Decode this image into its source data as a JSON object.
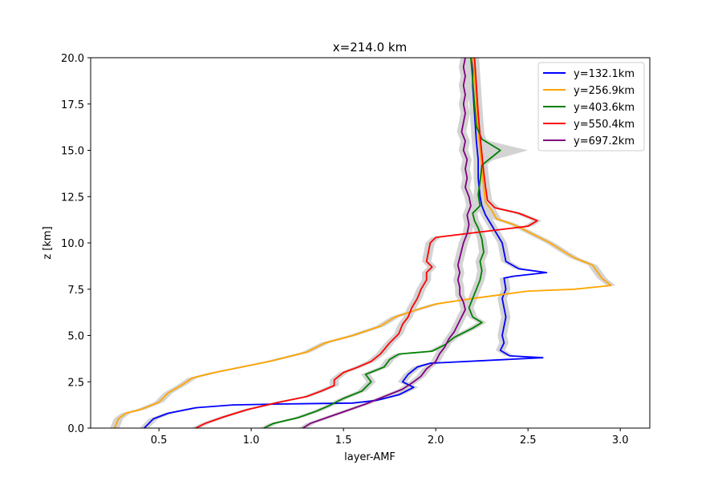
{
  "chart_data": {
    "type": "line",
    "title": "x=214.0 km",
    "xlabel": "layer-AMF",
    "ylabel": "z [km]",
    "xlim": [
      0.13,
      3.16
    ],
    "ylim": [
      0,
      20
    ],
    "x_ticks": [
      0.5,
      1.0,
      1.5,
      2.0,
      2.5,
      3.0
    ],
    "x_tick_labels": [
      "0.5",
      "1.0",
      "1.5",
      "2.0",
      "2.5",
      "3.0"
    ],
    "y_ticks": [
      0,
      2.5,
      5,
      7.5,
      10,
      12.5,
      15,
      17.5,
      20
    ],
    "y_tick_labels": [
      "0.0",
      "2.5",
      "5.0",
      "7.5",
      "10.0",
      "12.5",
      "15.0",
      "17.5",
      "20.0"
    ],
    "grid": false,
    "legend_position": "top-right",
    "uncertainty_band_color": "#d3d3d3",
    "series": [
      {
        "name": "y=132.1km",
        "color": "#0000ff",
        "points": [
          [
            0.42,
            0.0
          ],
          [
            0.47,
            0.5
          ],
          [
            0.55,
            0.8
          ],
          [
            0.7,
            1.1
          ],
          [
            0.9,
            1.25
          ],
          [
            1.15,
            1.3
          ],
          [
            1.55,
            1.35
          ],
          [
            1.68,
            1.5
          ],
          [
            1.8,
            1.8
          ],
          [
            1.88,
            2.2
          ],
          [
            1.82,
            2.5
          ],
          [
            1.85,
            2.9
          ],
          [
            1.9,
            3.3
          ],
          [
            1.97,
            3.5
          ],
          [
            2.58,
            3.8
          ],
          [
            2.4,
            3.9
          ],
          [
            2.35,
            4.2
          ],
          [
            2.37,
            4.6
          ],
          [
            2.36,
            5.0
          ],
          [
            2.37,
            5.5
          ],
          [
            2.38,
            6.0
          ],
          [
            2.37,
            6.5
          ],
          [
            2.36,
            7.0
          ],
          [
            2.38,
            7.5
          ],
          [
            2.37,
            8.1
          ],
          [
            2.42,
            8.2
          ],
          [
            2.6,
            8.4
          ],
          [
            2.45,
            8.6
          ],
          [
            2.38,
            9.0
          ],
          [
            2.37,
            9.5
          ],
          [
            2.36,
            10.0
          ],
          [
            2.33,
            10.5
          ],
          [
            2.3,
            11.0
          ],
          [
            2.27,
            11.5
          ],
          [
            2.25,
            12.0
          ],
          [
            2.24,
            12.5
          ],
          [
            2.23,
            13.5
          ],
          [
            2.23,
            14.5
          ],
          [
            2.22,
            15.5
          ],
          [
            2.21,
            17.0
          ],
          [
            2.2,
            18.5
          ],
          [
            2.2,
            20.0
          ]
        ]
      },
      {
        "name": "y=256.9km",
        "color": "#ffa500",
        "points": [
          [
            0.26,
            0.0
          ],
          [
            0.28,
            0.5
          ],
          [
            0.32,
            0.8
          ],
          [
            0.4,
            1.0
          ],
          [
            0.5,
            1.4
          ],
          [
            0.55,
            1.9
          ],
          [
            0.62,
            2.3
          ],
          [
            0.68,
            2.7
          ],
          [
            0.8,
            3.0
          ],
          [
            0.95,
            3.3
          ],
          [
            1.1,
            3.6
          ],
          [
            1.3,
            4.1
          ],
          [
            1.4,
            4.6
          ],
          [
            1.55,
            5.0
          ],
          [
            1.7,
            5.5
          ],
          [
            1.78,
            6.0
          ],
          [
            1.9,
            6.4
          ],
          [
            2.0,
            6.7
          ],
          [
            2.2,
            7.0
          ],
          [
            2.35,
            7.2
          ],
          [
            2.5,
            7.4
          ],
          [
            2.75,
            7.5
          ],
          [
            2.95,
            7.7
          ],
          [
            2.9,
            8.1
          ],
          [
            2.85,
            8.8
          ],
          [
            2.75,
            9.2
          ],
          [
            2.7,
            9.5
          ],
          [
            2.62,
            10.0
          ],
          [
            2.52,
            10.5
          ],
          [
            2.42,
            11.0
          ],
          [
            2.33,
            11.3
          ],
          [
            2.3,
            11.8
          ],
          [
            2.27,
            12.2
          ],
          [
            2.26,
            13.0
          ],
          [
            2.25,
            14.0
          ],
          [
            2.24,
            15.0
          ],
          [
            2.23,
            16.0
          ],
          [
            2.22,
            17.5
          ],
          [
            2.21,
            19.0
          ],
          [
            2.2,
            20.0
          ]
        ]
      },
      {
        "name": "y=403.6km",
        "color": "#008000",
        "points": [
          [
            1.07,
            0.0
          ],
          [
            1.12,
            0.25
          ],
          [
            1.25,
            0.55
          ],
          [
            1.35,
            0.9
          ],
          [
            1.42,
            1.2
          ],
          [
            1.5,
            1.6
          ],
          [
            1.6,
            2.0
          ],
          [
            1.65,
            2.5
          ],
          [
            1.62,
            2.9
          ],
          [
            1.72,
            3.3
          ],
          [
            1.75,
            3.7
          ],
          [
            1.8,
            4.0
          ],
          [
            1.98,
            4.15
          ],
          [
            2.05,
            4.5
          ],
          [
            2.1,
            4.9
          ],
          [
            2.2,
            5.4
          ],
          [
            2.25,
            5.7
          ],
          [
            2.2,
            6.0
          ],
          [
            2.18,
            6.5
          ],
          [
            2.2,
            7.0
          ],
          [
            2.22,
            7.5
          ],
          [
            2.24,
            8.0
          ],
          [
            2.25,
            8.5
          ],
          [
            2.24,
            9.0
          ],
          [
            2.26,
            9.5
          ],
          [
            2.25,
            10.2
          ],
          [
            2.23,
            10.8
          ],
          [
            2.21,
            11.2
          ],
          [
            2.2,
            11.6
          ],
          [
            2.24,
            12.0
          ],
          [
            2.23,
            12.6
          ],
          [
            2.24,
            13.3
          ],
          [
            2.25,
            14.2
          ],
          [
            2.35,
            15.0
          ],
          [
            2.25,
            15.6
          ],
          [
            2.22,
            16.3
          ],
          [
            2.21,
            17.5
          ],
          [
            2.2,
            18.8
          ],
          [
            2.19,
            20.0
          ]
        ]
      },
      {
        "name": "y=550.4km",
        "color": "#ff0000",
        "points": [
          [
            0.7,
            0.0
          ],
          [
            0.75,
            0.25
          ],
          [
            0.85,
            0.6
          ],
          [
            0.98,
            1.0
          ],
          [
            1.15,
            1.4
          ],
          [
            1.3,
            1.7
          ],
          [
            1.38,
            2.0
          ],
          [
            1.45,
            2.3
          ],
          [
            1.45,
            2.6
          ],
          [
            1.5,
            3.0
          ],
          [
            1.58,
            3.3
          ],
          [
            1.65,
            3.6
          ],
          [
            1.7,
            4.0
          ],
          [
            1.75,
            4.6
          ],
          [
            1.8,
            5.1
          ],
          [
            1.82,
            5.6
          ],
          [
            1.85,
            6.0
          ],
          [
            1.87,
            6.5
          ],
          [
            1.9,
            7.0
          ],
          [
            1.92,
            7.5
          ],
          [
            1.95,
            8.0
          ],
          [
            1.95,
            8.4
          ],
          [
            1.98,
            8.7
          ],
          [
            1.95,
            9.0
          ],
          [
            1.96,
            9.5
          ],
          [
            1.97,
            10.0
          ],
          [
            2.0,
            10.3
          ],
          [
            2.25,
            10.6
          ],
          [
            2.5,
            10.9
          ],
          [
            2.55,
            11.2
          ],
          [
            2.45,
            11.6
          ],
          [
            2.32,
            11.9
          ],
          [
            2.28,
            12.3
          ],
          [
            2.27,
            13.0
          ],
          [
            2.26,
            13.8
          ],
          [
            2.25,
            14.8
          ],
          [
            2.24,
            15.8
          ],
          [
            2.23,
            17.0
          ],
          [
            2.22,
            18.5
          ],
          [
            2.21,
            20.0
          ]
        ]
      },
      {
        "name": "y=697.2km",
        "color": "#800080",
        "points": [
          [
            1.28,
            0.0
          ],
          [
            1.32,
            0.25
          ],
          [
            1.42,
            0.6
          ],
          [
            1.52,
            0.95
          ],
          [
            1.62,
            1.3
          ],
          [
            1.72,
            1.7
          ],
          [
            1.82,
            2.1
          ],
          [
            1.88,
            2.5
          ],
          [
            1.92,
            2.8
          ],
          [
            1.95,
            3.2
          ],
          [
            2.0,
            3.6
          ],
          [
            2.02,
            4.0
          ],
          [
            2.05,
            4.4
          ],
          [
            2.07,
            4.8
          ],
          [
            2.1,
            5.2
          ],
          [
            2.12,
            5.6
          ],
          [
            2.14,
            6.0
          ],
          [
            2.16,
            6.4
          ],
          [
            2.15,
            6.8
          ],
          [
            2.13,
            7.2
          ],
          [
            2.13,
            7.6
          ],
          [
            2.12,
            8.0
          ],
          [
            2.13,
            8.4
          ],
          [
            2.12,
            8.8
          ],
          [
            2.13,
            9.2
          ],
          [
            2.14,
            9.6
          ],
          [
            2.15,
            10.0
          ],
          [
            2.17,
            10.5
          ],
          [
            2.18,
            11.0
          ],
          [
            2.17,
            11.5
          ],
          [
            2.19,
            12.0
          ],
          [
            2.18,
            12.5
          ],
          [
            2.16,
            13.0
          ],
          [
            2.17,
            13.5
          ],
          [
            2.16,
            14.0
          ],
          [
            2.17,
            14.5
          ],
          [
            2.15,
            15.0
          ],
          [
            2.16,
            15.5
          ],
          [
            2.14,
            16.0
          ],
          [
            2.15,
            16.5
          ],
          [
            2.16,
            17.0
          ],
          [
            2.15,
            17.5
          ],
          [
            2.16,
            18.0
          ],
          [
            2.15,
            18.5
          ],
          [
            2.16,
            19.0
          ],
          [
            2.15,
            19.5
          ],
          [
            2.16,
            20.0
          ]
        ]
      }
    ]
  }
}
